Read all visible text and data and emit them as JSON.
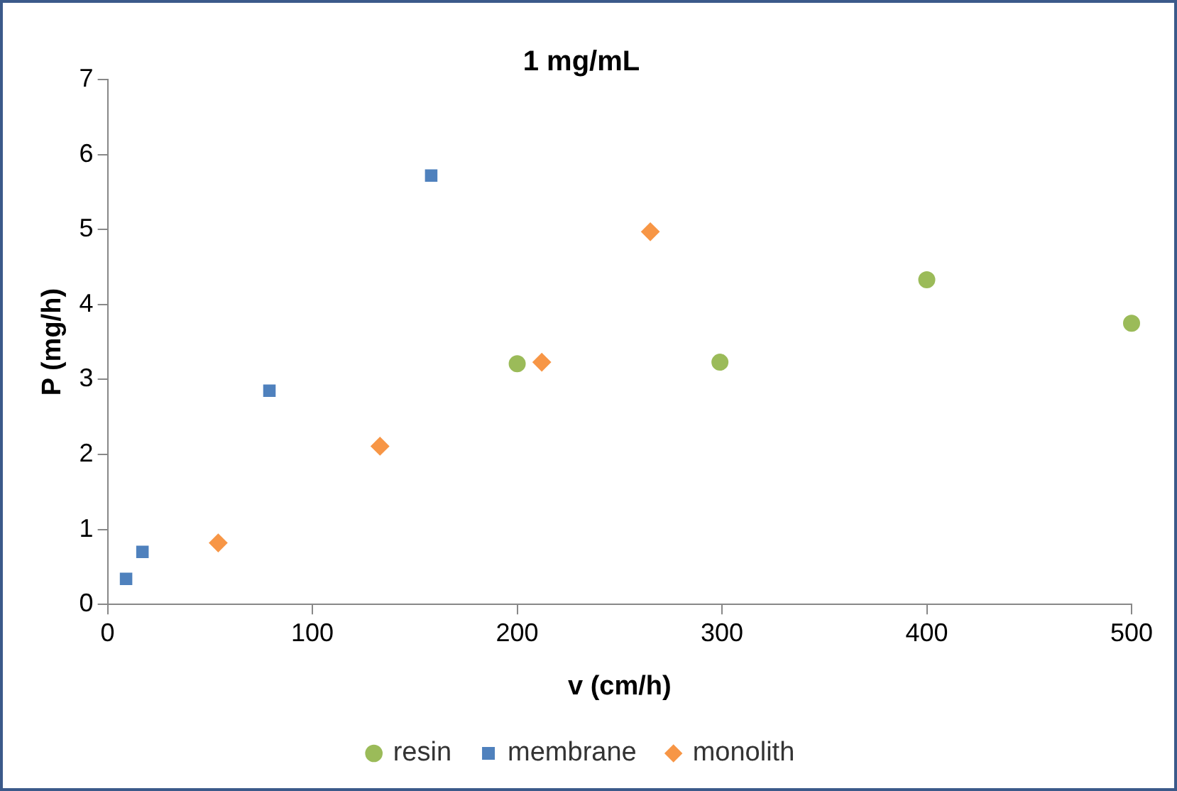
{
  "chart_data": {
    "type": "scatter",
    "title": "1 mg/mL",
    "xlabel": "v (cm/h)",
    "ylabel": "P (mg/h)",
    "xlim": [
      0,
      500
    ],
    "xticks": [
      0,
      100,
      200,
      300,
      400,
      500
    ],
    "ylim": [
      0,
      7
    ],
    "yticks": [
      0,
      1,
      2,
      3,
      4,
      5,
      6,
      7
    ],
    "grid": false,
    "legend": "bottom",
    "series": [
      {
        "name": "resin",
        "color": "#9bbb59",
        "marker": "circle",
        "x": [
          200,
          299,
          400,
          500
        ],
        "values": [
          3.21,
          3.23,
          4.33,
          3.75
        ]
      },
      {
        "name": "membrane",
        "color": "#4f81bd",
        "marker": "square",
        "x": [
          9,
          17,
          79,
          158
        ],
        "values": [
          0.34,
          0.7,
          2.85,
          5.72
        ]
      },
      {
        "name": "monolith",
        "color": "#f79646",
        "marker": "diamond",
        "x": [
          54,
          133,
          212,
          265
        ],
        "values": [
          0.82,
          2.11,
          3.23,
          4.97
        ]
      }
    ]
  }
}
